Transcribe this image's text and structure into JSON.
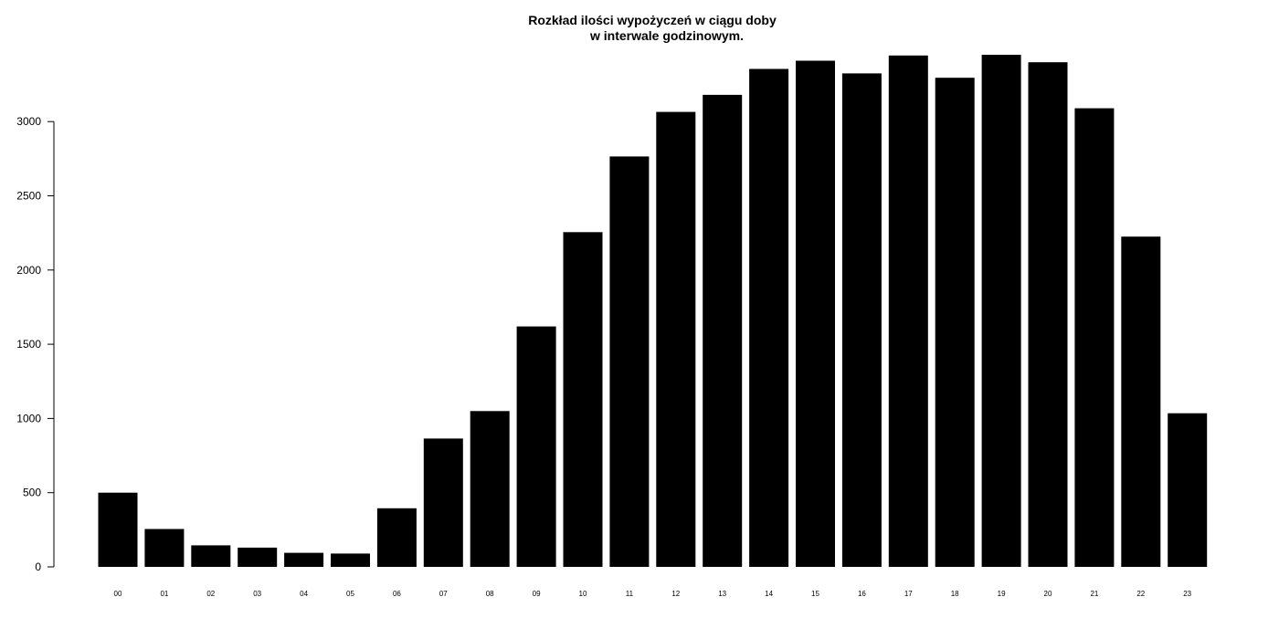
{
  "chart_data": {
    "type": "bar",
    "title_line1": "Rozkład ilości wypożyczeń w ciągu doby",
    "title_line2": "w interwale godzinowym.",
    "xlabel": "",
    "ylabel": "",
    "ylim": [
      0,
      3500
    ],
    "yticks": [
      0,
      500,
      1000,
      1500,
      2000,
      2500,
      3000
    ],
    "grid": false,
    "legend": "none",
    "bar_color": "#000000",
    "categories": [
      "00",
      "01",
      "02",
      "03",
      "04",
      "05",
      "06",
      "07",
      "08",
      "09",
      "10",
      "11",
      "12",
      "13",
      "14",
      "15",
      "16",
      "17",
      "18",
      "19",
      "20",
      "21",
      "22",
      "23"
    ],
    "values": [
      500,
      255,
      145,
      130,
      95,
      90,
      395,
      865,
      1050,
      1620,
      2255,
      2765,
      3065,
      3180,
      3355,
      3410,
      3325,
      3445,
      3295,
      3450,
      3400,
      3090,
      2225,
      1035
    ]
  }
}
